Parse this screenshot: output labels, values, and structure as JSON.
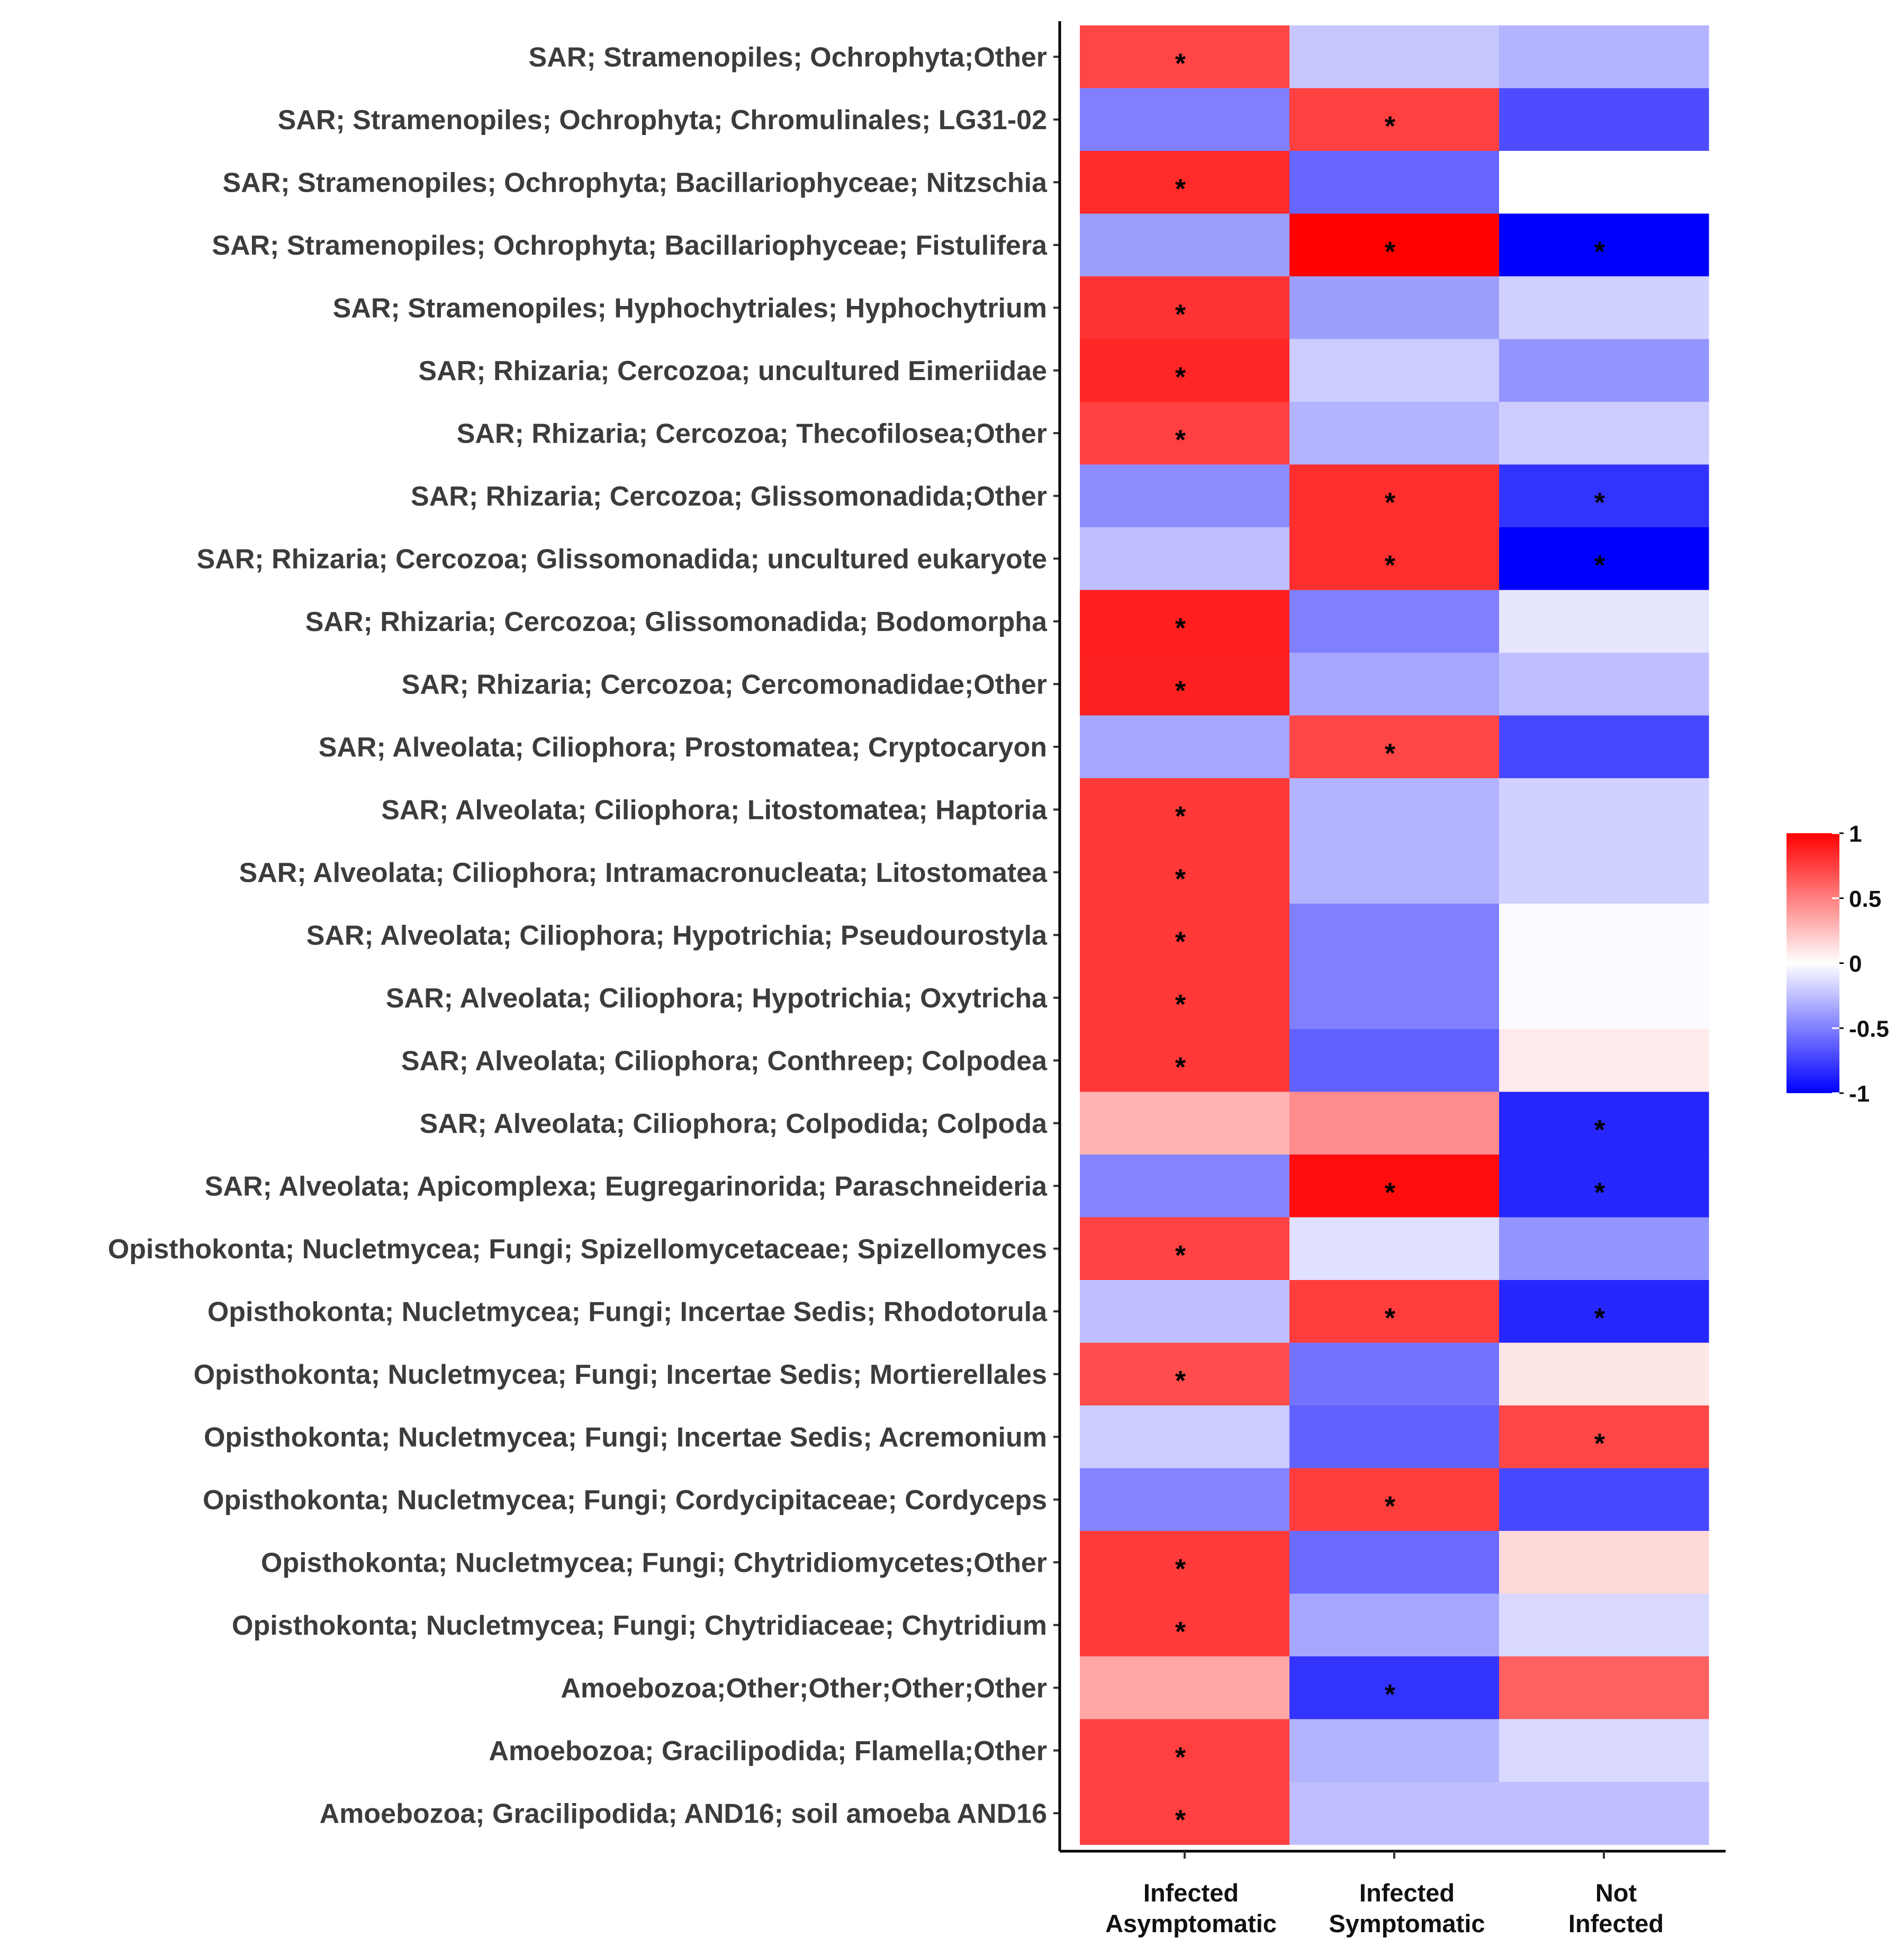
{
  "chart_data": {
    "type": "heatmap",
    "title": "",
    "xlabel": "",
    "ylabel": "",
    "columns": [
      [
        "Infected",
        "Asymptomatic"
      ],
      [
        "Infected",
        "Symptomatic"
      ],
      [
        "Not",
        "Infected"
      ]
    ],
    "rows": [
      "SAR; Stramenopiles; Ochrophyta;Other",
      "SAR; Stramenopiles; Ochrophyta; Chromulinales; LG31-02",
      "SAR; Stramenopiles; Ochrophyta; Bacillariophyceae; Nitzschia",
      "SAR; Stramenopiles; Ochrophyta; Bacillariophyceae; Fistulifera",
      "SAR; Stramenopiles; Hyphochytriales; Hyphochytrium",
      "SAR; Rhizaria; Cercozoa; uncultured Eimeriidae",
      "SAR; Rhizaria; Cercozoa; Thecofilosea;Other",
      "SAR; Rhizaria; Cercozoa; Glissomonadida;Other",
      "SAR; Rhizaria; Cercozoa; Glissomonadida; uncultured eukaryote",
      "SAR; Rhizaria; Cercozoa; Glissomonadida; Bodomorpha",
      "SAR; Rhizaria; Cercozoa; Cercomonadidae;Other",
      "SAR; Alveolata; Ciliophora; Prostomatea; Cryptocaryon",
      "SAR; Alveolata; Ciliophora; Litostomatea; Haptoria",
      "SAR; Alveolata; Ciliophora; Intramacronucleata; Litostomatea",
      "SAR; Alveolata; Ciliophora; Hypotrichia; Pseudourostyla",
      "SAR; Alveolata; Ciliophora; Hypotrichia; Oxytricha",
      "SAR; Alveolata; Ciliophora; Conthreep; Colpodea",
      "SAR; Alveolata; Ciliophora; Colpodida; Colpoda",
      "SAR; Alveolata; Apicomplexa; Eugregarinorida; Paraschneideria",
      "Opisthokonta; Nucletmycea; Fungi; Spizellomycetaceae; Spizellomyces",
      "Opisthokonta; Nucletmycea; Fungi; Incertae Sedis; Rhodotorula",
      "Opisthokonta; Nucletmycea; Fungi; Incertae Sedis; Mortierellales",
      "Opisthokonta; Nucletmycea; Fungi; Incertae Sedis; Acremonium",
      "Opisthokonta; Nucletmycea; Fungi; Cordycipitaceae; Cordyceps",
      "Opisthokonta; Nucletmycea; Fungi; Chytridiomycetes;Other",
      "Opisthokonta; Nucletmycea; Fungi; Chytridiaceae; Chytridium",
      "Amoebozoa;Other;Other;Other;Other",
      "Amoebozoa; Gracilipodida; Flamella;Other",
      "Amoebozoa; Gracilipodida; AND16; soil amoeba AND16"
    ],
    "values": [
      [
        0.73,
        -0.22,
        -0.3
      ],
      [
        -0.5,
        0.75,
        -0.7
      ],
      [
        0.83,
        -0.6,
        0.0
      ],
      [
        -0.38,
        1.0,
        -1.0
      ],
      [
        0.8,
        -0.38,
        -0.18
      ],
      [
        0.85,
        -0.2,
        -0.42
      ],
      [
        0.75,
        -0.3,
        -0.2
      ],
      [
        -0.45,
        0.82,
        -0.8
      ],
      [
        -0.25,
        0.82,
        -1.0
      ],
      [
        0.88,
        -0.5,
        -0.1
      ],
      [
        0.87,
        -0.35,
        -0.25
      ],
      [
        -0.35,
        0.72,
        -0.72
      ],
      [
        0.78,
        -0.3,
        -0.18
      ],
      [
        0.78,
        -0.3,
        -0.18
      ],
      [
        0.78,
        -0.5,
        -0.02
      ],
      [
        0.78,
        -0.5,
        -0.02
      ],
      [
        0.78,
        -0.62,
        0.08
      ],
      [
        0.3,
        0.45,
        -0.85
      ],
      [
        -0.48,
        0.95,
        -0.85
      ],
      [
        0.74,
        -0.12,
        -0.42
      ],
      [
        -0.25,
        0.76,
        -0.85
      ],
      [
        0.7,
        -0.55,
        0.1
      ],
      [
        -0.2,
        -0.62,
        0.72
      ],
      [
        -0.48,
        0.76,
        -0.72
      ],
      [
        0.77,
        -0.58,
        0.15
      ],
      [
        0.77,
        -0.35,
        -0.15
      ],
      [
        0.35,
        -0.8,
        0.62
      ],
      [
        0.75,
        -0.3,
        -0.15
      ],
      [
        0.75,
        -0.25,
        -0.25
      ]
    ],
    "significant": [
      [
        1,
        0,
        0
      ],
      [
        0,
        1,
        0
      ],
      [
        1,
        0,
        0
      ],
      [
        0,
        1,
        1
      ],
      [
        1,
        0,
        0
      ],
      [
        1,
        0,
        0
      ],
      [
        1,
        0,
        0
      ],
      [
        0,
        1,
        1
      ],
      [
        0,
        1,
        1
      ],
      [
        1,
        0,
        0
      ],
      [
        1,
        0,
        0
      ],
      [
        0,
        1,
        0
      ],
      [
        1,
        0,
        0
      ],
      [
        1,
        0,
        0
      ],
      [
        1,
        0,
        0
      ],
      [
        1,
        0,
        0
      ],
      [
        1,
        0,
        0
      ],
      [
        0,
        0,
        1
      ],
      [
        0,
        1,
        1
      ],
      [
        1,
        0,
        0
      ],
      [
        0,
        1,
        1
      ],
      [
        1,
        0,
        0
      ],
      [
        0,
        0,
        1
      ],
      [
        0,
        1,
        0
      ],
      [
        1,
        0,
        0
      ],
      [
        1,
        0,
        0
      ],
      [
        0,
        1,
        0
      ],
      [
        1,
        0,
        0
      ],
      [
        1,
        0,
        0
      ]
    ],
    "significance_marker": "*",
    "colorbar": {
      "range": [
        -1,
        1
      ],
      "ticks": [
        {
          "value": 1,
          "label": "1"
        },
        {
          "value": 0.5,
          "label": "0.5"
        },
        {
          "value": 0,
          "label": "0"
        },
        {
          "value": -0.5,
          "label": "-0.5"
        },
        {
          "value": -1,
          "label": "-1"
        }
      ],
      "colors": {
        "low": "#0000ff",
        "mid": "#ffffff",
        "high": "#ff0000"
      }
    }
  }
}
